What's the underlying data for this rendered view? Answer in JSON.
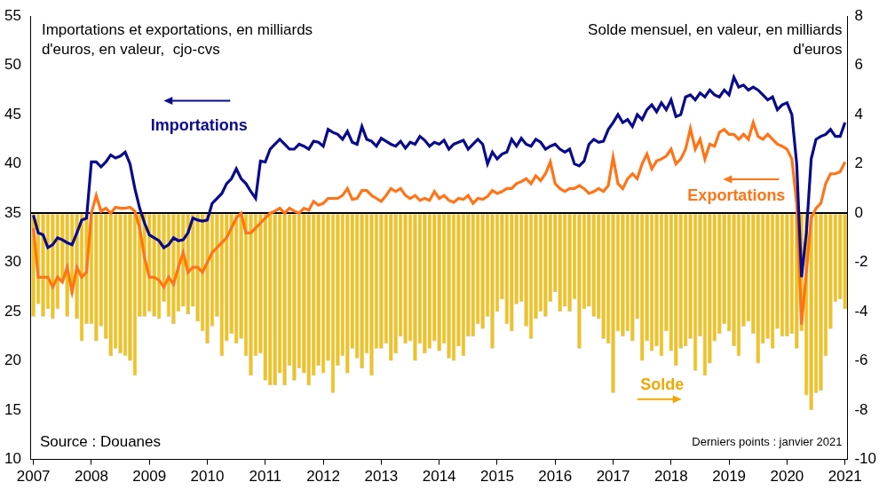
{
  "chart_data": {
    "type": "bar",
    "categories": [
      "2007",
      null,
      null,
      null,
      null,
      null,
      null,
      null,
      null,
      null,
      null,
      null,
      "2008",
      null,
      null,
      null,
      null,
      null,
      null,
      null,
      null,
      null,
      null,
      null,
      "2009",
      null,
      null,
      null,
      null,
      null,
      null,
      null,
      null,
      null,
      null,
      null,
      "2010",
      null,
      null,
      null,
      null,
      null,
      null,
      null,
      null,
      null,
      null,
      null,
      "2011",
      null,
      null,
      null,
      null,
      null,
      null,
      null,
      null,
      null,
      null,
      null,
      "2012",
      null,
      null,
      null,
      null,
      null,
      null,
      null,
      null,
      null,
      null,
      null,
      "2013",
      null,
      null,
      null,
      null,
      null,
      null,
      null,
      null,
      null,
      null,
      null,
      "2014",
      null,
      null,
      null,
      null,
      null,
      null,
      null,
      null,
      null,
      null,
      null,
      "2015",
      null,
      null,
      null,
      null,
      null,
      null,
      null,
      null,
      null,
      null,
      null,
      "2016",
      null,
      null,
      null,
      null,
      null,
      null,
      null,
      null,
      null,
      null,
      null,
      "2017",
      null,
      null,
      null,
      null,
      null,
      null,
      null,
      null,
      null,
      null,
      null,
      "2018",
      null,
      null,
      null,
      null,
      null,
      null,
      null,
      null,
      null,
      null,
      null,
      "2019",
      null,
      null,
      null,
      null,
      null,
      null,
      null,
      null,
      null,
      null,
      null,
      "2020",
      null,
      null,
      null,
      null,
      null,
      null,
      null,
      null,
      null,
      null,
      null,
      "2021"
    ],
    "series": [
      {
        "name": "Importations",
        "type": "line",
        "color": "#0a0a8c",
        "values": [
          34.8,
          33,
          32.8,
          31.5,
          31.8,
          32.5,
          32.3,
          32,
          31.8,
          33,
          34.3,
          34.5,
          40.2,
          40.2,
          39.7,
          40.2,
          40.9,
          40.6,
          40.8,
          41.2,
          40,
          37.5,
          35.5,
          34,
          32.8,
          32.5,
          32.2,
          31.5,
          31.8,
          32.5,
          32.2,
          32.3,
          33,
          34.5,
          34.3,
          34.2,
          34.3,
          36,
          36.5,
          37,
          38,
          38.5,
          39.5,
          38.5,
          38,
          37.2,
          36.5,
          40.3,
          40.2,
          41.5,
          42,
          42.5,
          42,
          41.5,
          41.5,
          42,
          41.8,
          41.5,
          42.3,
          42.2,
          41.8,
          43.5,
          43.2,
          43,
          42.5,
          43.3,
          42.2,
          42,
          43.8,
          42.5,
          42.3,
          41.8,
          42.6,
          42.3,
          42,
          41.8,
          42.3,
          41.6,
          42.2,
          42,
          42.8,
          42.4,
          41.8,
          42.2,
          42,
          42.4,
          41.5,
          42,
          42.2,
          42.4,
          41.5,
          42,
          42.5,
          42,
          40,
          41.2,
          40.5,
          41,
          41.2,
          42.5,
          41.8,
          42.6,
          42,
          41.8,
          42.5,
          42.2,
          41.5,
          41.8,
          42,
          41.5,
          41.2,
          41.5,
          40,
          39.8,
          40.3,
          42,
          42.5,
          42.2,
          42.3,
          43.5,
          44.2,
          45,
          44.2,
          44.5,
          43.8,
          45,
          44.5,
          45.5,
          46,
          45.3,
          46.2,
          45.5,
          46.5,
          44.8,
          45,
          46.8,
          47,
          46.5,
          47.2,
          46.8,
          47.5,
          47,
          46.8,
          47.5,
          47,
          48.8,
          47.8,
          48,
          47.5,
          47.8,
          47.5,
          47,
          46.5,
          46.8,
          45.5,
          46,
          46.2,
          45,
          40,
          28.5,
          33,
          40.5,
          42.5,
          42.8,
          43,
          43.5,
          42.8,
          42.8,
          44.2
        ]
      },
      {
        "name": "Exportations",
        "type": "line",
        "color": "#ff7417",
        "values": [
          33.5,
          28.5,
          28.5,
          28.5,
          27.5,
          28.5,
          28,
          29.5,
          27,
          29.5,
          28.5,
          29,
          35,
          36.8,
          35.2,
          35.5,
          35,
          35.6,
          35.5,
          35.5,
          35.6,
          35.2,
          33.5,
          30.5,
          28.5,
          28.5,
          28.2,
          27.5,
          28.5,
          27.8,
          29.5,
          31,
          29,
          29.5,
          29.5,
          29,
          30,
          31,
          31.5,
          32,
          32.5,
          33.5,
          34.5,
          35,
          33,
          33,
          33.5,
          34,
          34.5,
          35,
          35.2,
          35.5,
          35,
          35.5,
          35.2,
          35,
          35.5,
          35.3,
          36.2,
          35.8,
          36,
          36.5,
          36.5,
          36.5,
          36.8,
          37.5,
          36.4,
          36.5,
          37.3,
          37.3,
          36.8,
          36.5,
          36.2,
          36.8,
          37.5,
          37.2,
          37.5,
          36.8,
          36.5,
          36.8,
          36.3,
          36.5,
          36.3,
          37.2,
          36.5,
          36.8,
          36.3,
          36.1,
          36.5,
          36.4,
          36.8,
          36,
          36.5,
          36.4,
          36.7,
          37.3,
          37,
          37.2,
          37.5,
          37.5,
          38,
          38.2,
          38.5,
          38,
          38.8,
          38.3,
          39,
          40.2,
          38,
          37.5,
          37.2,
          37.5,
          37.5,
          37.8,
          37.5,
          37,
          37.2,
          37.5,
          37.2,
          37.8,
          40.7,
          38,
          37.5,
          38.5,
          39,
          38.5,
          40,
          41,
          39.5,
          40.3,
          40.5,
          40.8,
          41.5,
          40,
          40.5,
          41.5,
          43.6,
          41.5,
          42.5,
          40.5,
          42,
          41.8,
          43.2,
          43.5,
          43,
          43,
          42.5,
          43,
          42.5,
          44.2,
          42.8,
          42.5,
          43,
          42.5,
          42,
          41.8,
          41.5,
          40.5,
          36,
          23.7,
          29,
          34.5,
          35.5,
          36,
          38,
          39,
          39,
          39.2,
          40.2
        ]
      },
      {
        "name": "Solde",
        "type": "bar",
        "axis": "y2",
        "color": "#f2c414",
        "values": [
          -4.2,
          -3.7,
          -4.2,
          -3.9,
          -4.3,
          -3.9,
          -2.7,
          -4.2,
          -3.3,
          -4.3,
          -5.2,
          -4.5,
          -4.5,
          -5.2,
          -4.6,
          -5.1,
          -5.8,
          -5.5,
          -5.7,
          -5.8,
          -6,
          -6.6,
          -4.2,
          -4.2,
          -4,
          -4.2,
          -4.3,
          -3.6,
          -4.2,
          -4.5,
          -4,
          -3.8,
          -4.1,
          -3.8,
          -4.4,
          -4.8,
          -5.3,
          -4.6,
          -4.2,
          -5.8,
          -5.2,
          -4.9,
          -5.3,
          -5.1,
          -5.8,
          -6.6,
          -5.8,
          -5.7,
          -6.8,
          -7,
          -7,
          -6.5,
          -7,
          -6.2,
          -6.8,
          -6.3,
          -6.5,
          -7,
          -6.6,
          -6.2,
          -6.5,
          -6,
          -7.3,
          -6.2,
          -5.8,
          -6.5,
          -5.5,
          -5.9,
          -6.3,
          -5.7,
          -6.6,
          -5.5,
          -5.5,
          -5.3,
          -6,
          -5.7,
          -5,
          -5.3,
          -5.2,
          -6,
          -5.3,
          -5.7,
          -5.5,
          -5.2,
          -5.6,
          -5.3,
          -5.9,
          -6,
          -5.4,
          -5.8,
          -5,
          -5,
          -4.5,
          -4.7,
          -4.2,
          -5.5,
          -4,
          -3.5,
          -4.5,
          -4.8,
          -3.7,
          -3.6,
          -4.6,
          -5.1,
          -4.3,
          -4,
          -4.2,
          -3.6,
          -3.2,
          -4,
          -3.8,
          -4,
          -3.5,
          -5.5,
          -3.9,
          -3.8,
          -4.2,
          -4.3,
          -5.1,
          -5.3,
          -7.3,
          -4.8,
          -5,
          -4.8,
          -5.2,
          -4.3,
          -6,
          -5.2,
          -5.6,
          -5.4,
          -5.8,
          -4.8,
          -5.6,
          -6.2,
          -5.5,
          -5.4,
          -5.1,
          -6.4,
          -5,
          -6.6,
          -6.1,
          -5.2,
          -4.9,
          -4.5,
          -4.8,
          -5.4,
          -5.8,
          -4.6,
          -4.4,
          -4.9,
          -6.1,
          -5.3,
          -5.1,
          -5.5,
          -4.7,
          -5,
          -5,
          -4.9,
          -5.5,
          -4.8,
          -7.4,
          -8,
          -7.3,
          -7.2,
          -5.8,
          -4.7,
          -3.6,
          -3.5,
          -3.9
        ]
      }
    ],
    "ylim": [
      10,
      55
    ],
    "yticks": [
      10,
      15,
      20,
      25,
      30,
      35,
      40,
      45,
      50,
      55
    ],
    "y2lim": [
      -10,
      8
    ],
    "y2ticks": [
      -10,
      -8,
      -6,
      -4,
      -2,
      0,
      2,
      4,
      6,
      8
    ],
    "grid": false,
    "annotations": [
      {
        "text": "Importations et exportations, en milliards\nd'euros, en valeur,  cjo-cvs"
      },
      {
        "text": "Solde mensuel, en valeur, en milliards\nd'euros"
      },
      {
        "text": "Source : Douanes"
      },
      {
        "text": "Derniers points : janvier 2021"
      }
    ]
  }
}
